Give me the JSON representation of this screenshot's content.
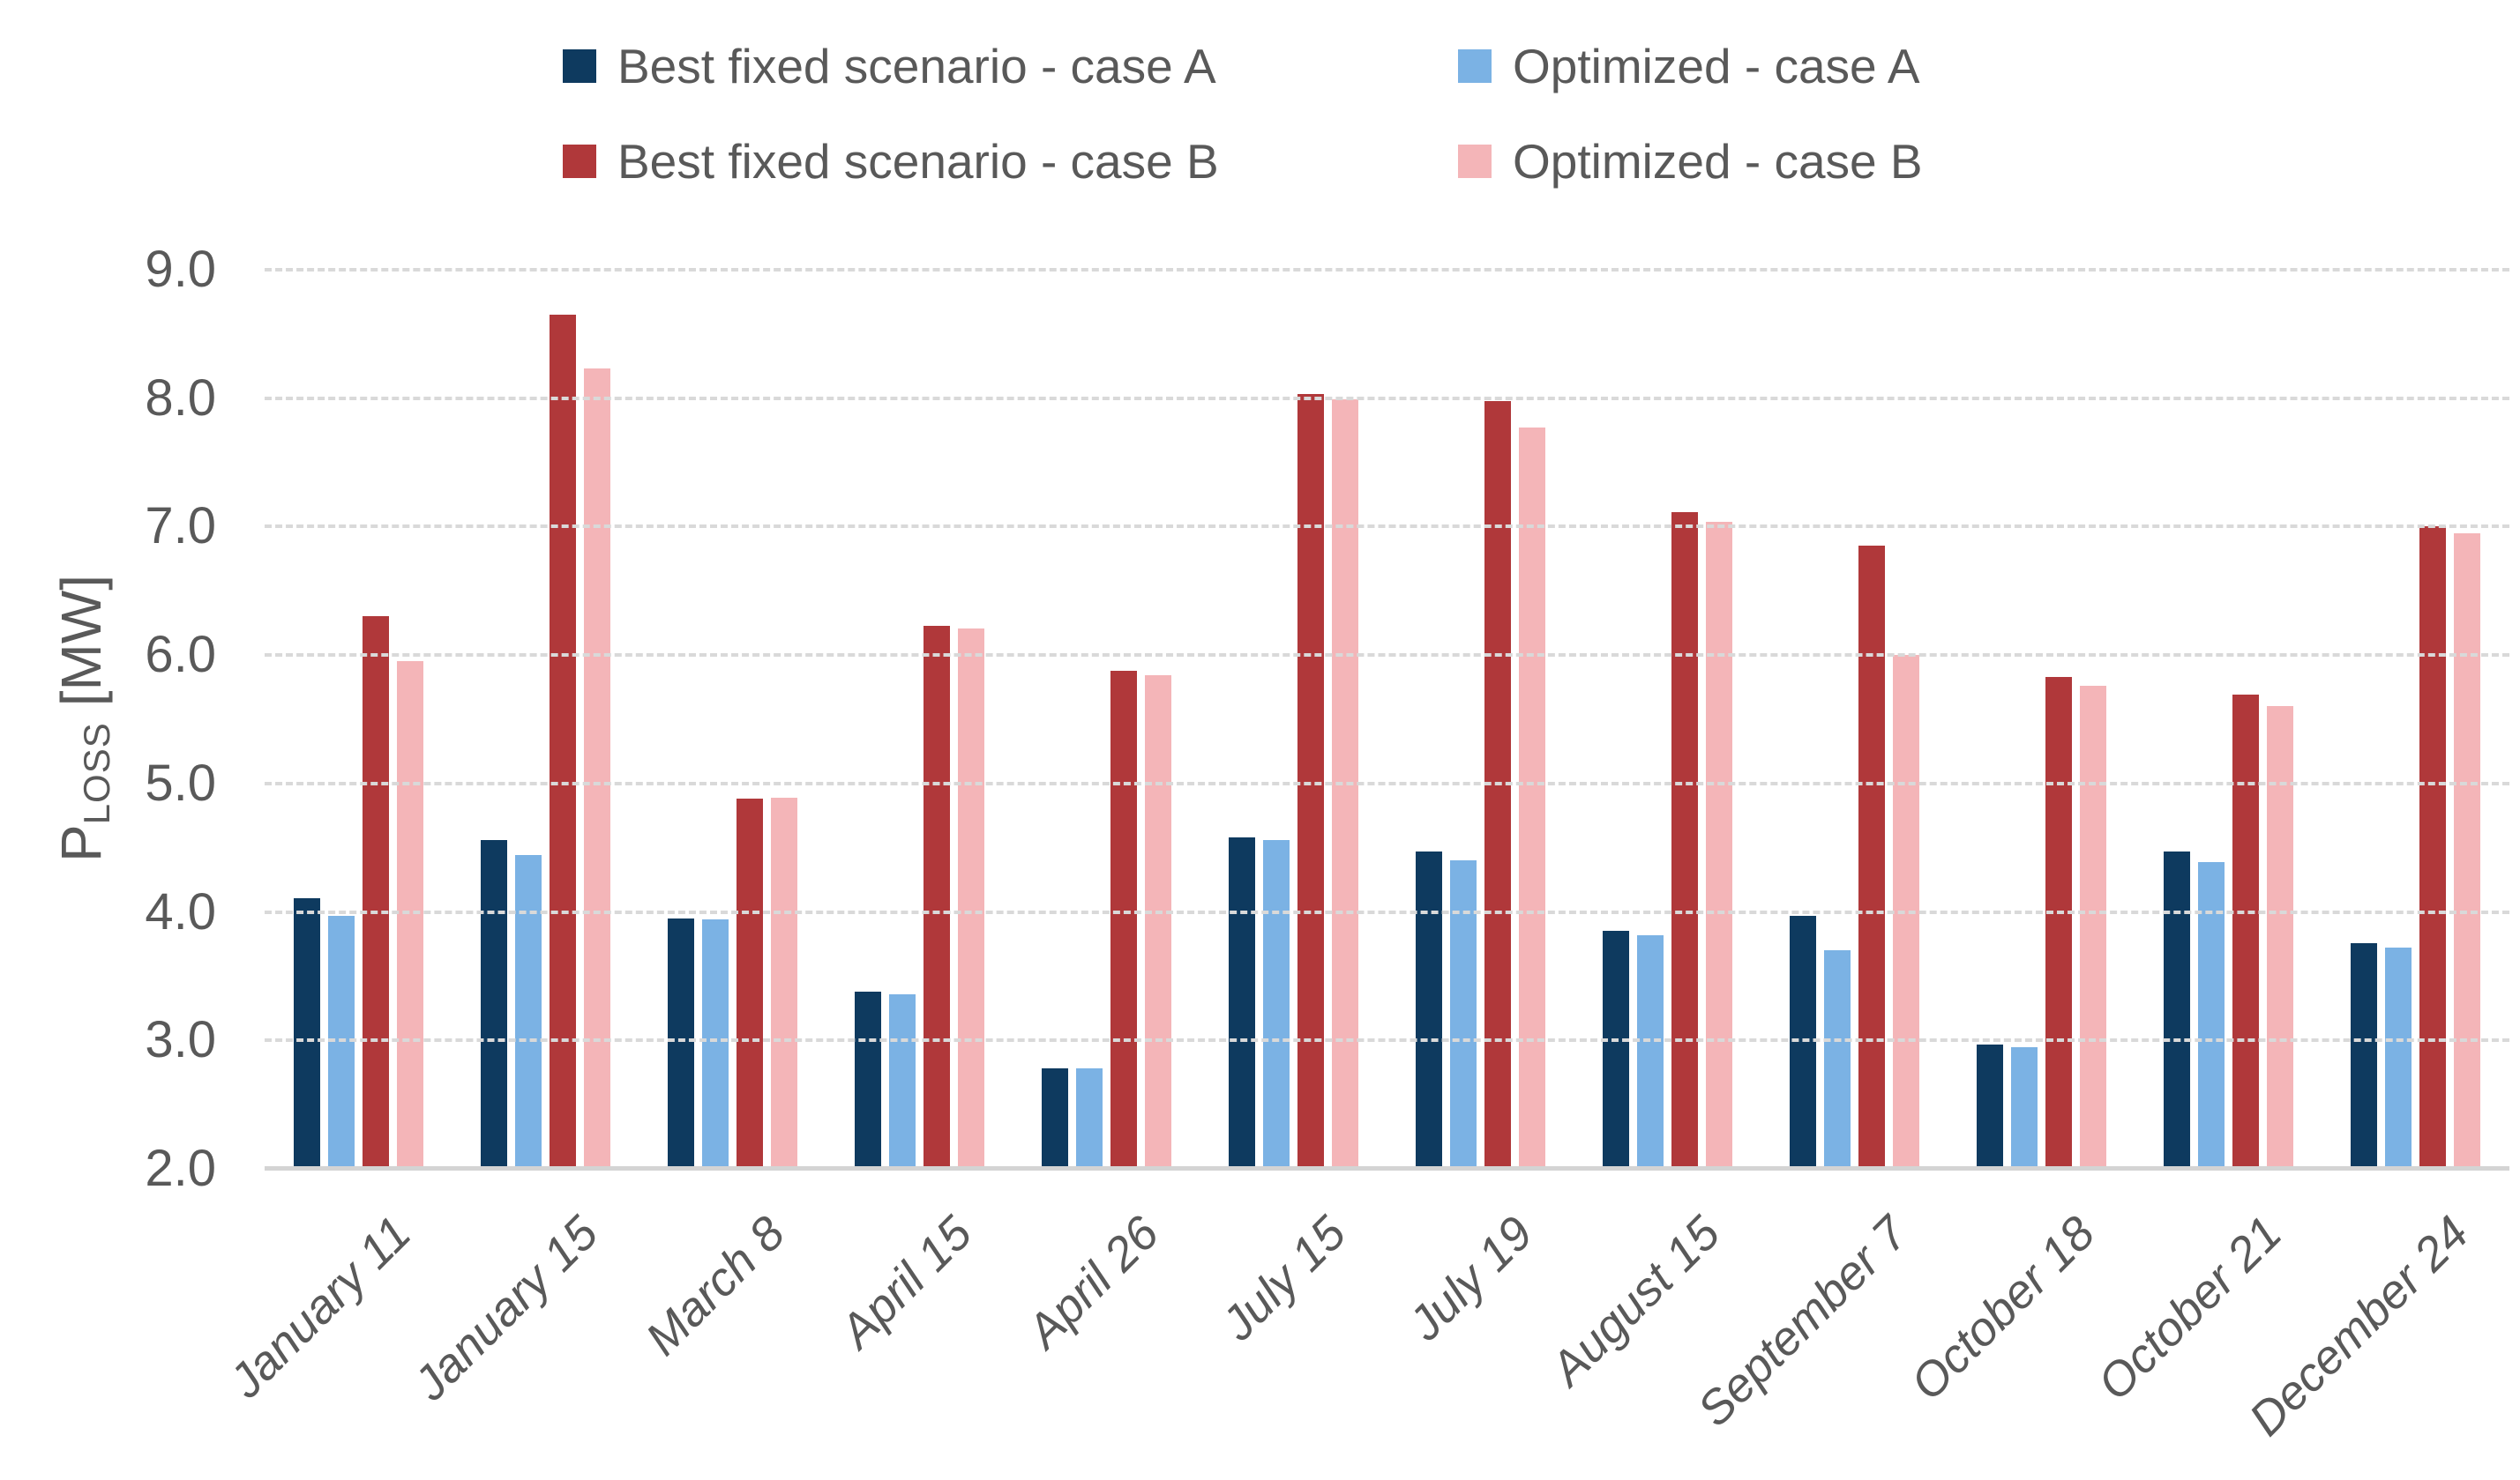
{
  "legend": {
    "items": [
      {
        "label": "Best fixed scenario - case A",
        "color": "#0E3A5F"
      },
      {
        "label": "Optimized - case A",
        "color": "#7BB2E4"
      },
      {
        "label": "Best fixed scenario - case B",
        "color": "#B0383A"
      },
      {
        "label": "Optimized - case B",
        "color": "#F4B5B8"
      }
    ]
  },
  "y_axis": {
    "title_main": "P",
    "title_sub": "LOSS",
    "title_unit": "[MW]",
    "ticks": [
      "2.0",
      "3.0",
      "4.0",
      "5.0",
      "6.0",
      "7.0",
      "8.0",
      "9.0"
    ]
  },
  "chart_data": {
    "type": "bar",
    "title": "",
    "xlabel": "",
    "ylabel": "PLOSS [MW]",
    "ylim": [
      2.0,
      9.0
    ],
    "ytick_step": 1.0,
    "grid": "horizontal-dashed",
    "legend_position": "top",
    "categories": [
      "January 11",
      "January 15",
      "March 8",
      "April 15",
      "April 26",
      "July 15",
      "July 19",
      "August 15",
      "September 7",
      "October 18",
      "October 21",
      "December 24"
    ],
    "series": [
      {
        "name": "Best fixed scenario - case A",
        "color": "#0E3A5F",
        "values": [
          4.11,
          4.56,
          3.95,
          3.38,
          2.78,
          4.58,
          4.47,
          3.85,
          3.97,
          2.97,
          4.47,
          3.76
        ]
      },
      {
        "name": "Optimized - case A",
        "color": "#7BB2E4",
        "values": [
          3.97,
          4.44,
          3.94,
          3.36,
          2.78,
          4.56,
          4.4,
          3.82,
          3.7,
          2.95,
          4.39,
          3.72
        ]
      },
      {
        "name": "Best fixed scenario - case B",
        "color": "#B0383A",
        "values": [
          6.3,
          8.65,
          4.88,
          6.23,
          5.88,
          8.03,
          7.98,
          7.11,
          6.85,
          5.83,
          5.69,
          7.0
        ]
      },
      {
        "name": "Optimized - case B",
        "color": "#F4B5B8",
        "values": [
          5.95,
          8.23,
          4.89,
          6.21,
          5.84,
          7.99,
          7.77,
          7.04,
          6.0,
          5.76,
          5.6,
          6.95
        ]
      }
    ]
  },
  "colors": {
    "grid": "#D9D9D9",
    "axis_line": "#D4D4D4",
    "text": "#595959"
  }
}
